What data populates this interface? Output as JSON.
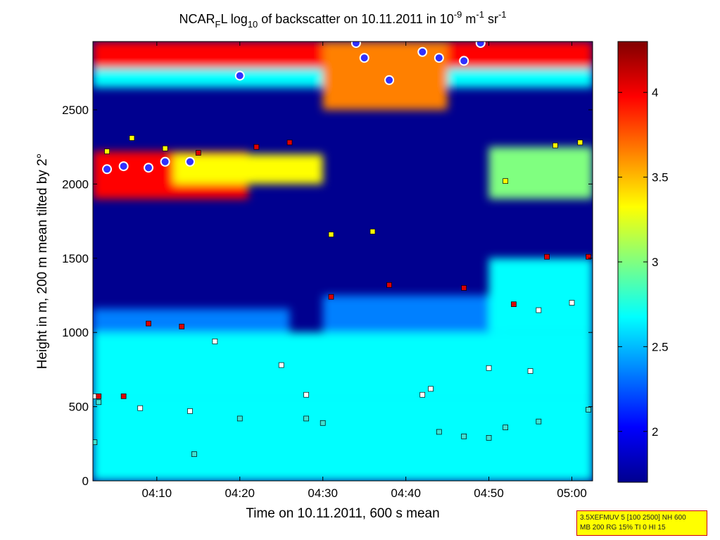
{
  "chart_data": {
    "type": "heatmap",
    "title": {
      "prefix": "NCAR",
      "sub1": "F",
      "mid": "L log",
      "sub2": "10",
      "main": " of backscatter on 10.11.2011 in 10",
      "sup1": "-9",
      "unit1": " m",
      "sup2": "-1",
      "unit2": " sr",
      "sup3": "-1"
    },
    "xlabel": "Time on 10.11.2011, 600 s mean",
    "ylabel": "Height in m, 200 m mean tilted by 2°",
    "x_range_minutes_after_04h": [
      2.3,
      62.5
    ],
    "ylim": [
      0,
      2960
    ],
    "x_ticks": [
      {
        "minute": 10,
        "label": "04:10"
      },
      {
        "minute": 20,
        "label": "04:20"
      },
      {
        "minute": 30,
        "label": "04:30"
      },
      {
        "minute": 40,
        "label": "04:40"
      },
      {
        "minute": 50,
        "label": "04:50"
      },
      {
        "minute": 60,
        "label": "05:00"
      }
    ],
    "y_ticks": [
      {
        "value": 0,
        "label": "0"
      },
      {
        "value": 500,
        "label": "500"
      },
      {
        "value": 1000,
        "label": "1000"
      },
      {
        "value": 1500,
        "label": "1500"
      },
      {
        "value": 2000,
        "label": "2000"
      },
      {
        "value": 2500,
        "label": "2500"
      }
    ],
    "colorbar": {
      "range": [
        1.7,
        4.3
      ],
      "ticks": [
        {
          "value": 2,
          "label": "2"
        },
        {
          "value": 2.5,
          "label": "2.5"
        },
        {
          "value": 3,
          "label": "3"
        },
        {
          "value": 3.5,
          "label": "3.5"
        },
        {
          "value": 4,
          "label": "4"
        }
      ],
      "colors": [
        "#00008f",
        "#0000ff",
        "#0080ff",
        "#00ffff",
        "#80ff80",
        "#ffff00",
        "#ff8000",
        "#ff0000",
        "#800000"
      ]
    },
    "layers": [
      {
        "name": "surface",
        "ranges": [
          [
            2.3,
            62.5,
            0,
            560,
            2.75
          ]
        ]
      },
      {
        "name": "aerosol",
        "ranges": [
          [
            2.3,
            62.5,
            560,
            1000,
            2.55
          ],
          [
            2.3,
            26,
            1000,
            1160,
            2.35
          ],
          [
            30,
            52,
            1000,
            1250,
            2.5
          ],
          [
            50,
            62.5,
            1000,
            1500,
            2.55
          ]
        ]
      },
      {
        "name": "cloud",
        "ranges": [
          [
            2.3,
            21,
            1900,
            2220,
            4.0
          ],
          [
            12,
            30,
            2000,
            2200,
            3.3
          ],
          [
            50,
            62.5,
            1900,
            2250,
            2.9
          ]
        ]
      },
      {
        "name": "upper",
        "ranges": [
          [
            2.3,
            62.5,
            2650,
            2960,
            2.8
          ],
          [
            2.3,
            62.5,
            2780,
            2960,
            3.9
          ],
          [
            30,
            45,
            2500,
            2960,
            3.6
          ]
        ]
      }
    ],
    "markers": {
      "cyan": [
        [
          2.5,
          260
        ],
        [
          14.5,
          180
        ],
        [
          3,
          530
        ],
        [
          20,
          420
        ],
        [
          28,
          420
        ],
        [
          30,
          390
        ],
        [
          44,
          330
        ],
        [
          47,
          300
        ],
        [
          50,
          290
        ],
        [
          52,
          360
        ],
        [
          56,
          400
        ],
        [
          62,
          480
        ]
      ],
      "white": [
        [
          2.5,
          570
        ],
        [
          8,
          490
        ],
        [
          14,
          470
        ],
        [
          17,
          940
        ],
        [
          25,
          780
        ],
        [
          28,
          580
        ],
        [
          42,
          580
        ],
        [
          43,
          620
        ],
        [
          50,
          760
        ],
        [
          55,
          740
        ],
        [
          56,
          1150
        ],
        [
          60,
          1200
        ]
      ],
      "red": [
        [
          3,
          570
        ],
        [
          6,
          570
        ],
        [
          9,
          1060
        ],
        [
          13,
          1040
        ],
        [
          15,
          2210
        ],
        [
          22,
          2250
        ],
        [
          26,
          2280
        ],
        [
          31,
          1240
        ],
        [
          38,
          1320
        ],
        [
          47,
          1300
        ],
        [
          53,
          1190
        ],
        [
          57,
          1510
        ],
        [
          62,
          1510
        ]
      ],
      "yellow": [
        [
          4,
          2220
        ],
        [
          7,
          2310
        ],
        [
          11,
          2240
        ],
        [
          31,
          1660
        ],
        [
          36,
          1680
        ],
        [
          52,
          2020
        ],
        [
          58,
          2260
        ],
        [
          61,
          2280
        ]
      ],
      "magenta_ring": [
        [
          4,
          2100
        ],
        [
          6,
          2120
        ],
        [
          9,
          2110
        ],
        [
          11,
          2150
        ],
        [
          14,
          2150
        ],
        [
          20,
          2730
        ],
        [
          34,
          2950
        ],
        [
          35,
          2850
        ],
        [
          38,
          2700
        ],
        [
          42,
          2890
        ],
        [
          44,
          2850
        ],
        [
          47,
          2830
        ],
        [
          49,
          2950
        ]
      ]
    },
    "info_box": {
      "line1": "3.5XEFMUV 5 [100 2500] NH 600",
      "line2": "MB 200 RG 15% TI 0 HI 15"
    }
  }
}
